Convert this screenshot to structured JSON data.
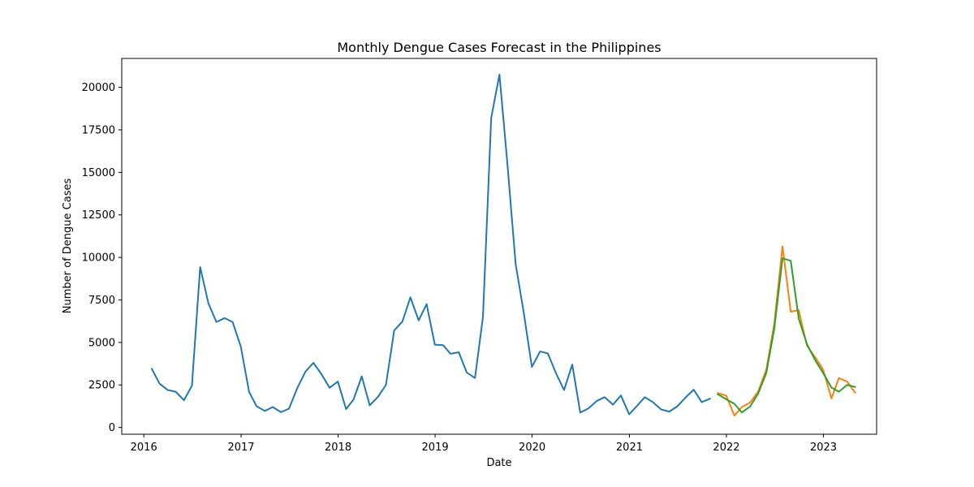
{
  "chart_data": {
    "type": "line",
    "title": "Monthly Dengue Cases Forecast in the Philippines",
    "xlabel": "Date",
    "ylabel": "Number of Dengue Cases",
    "xlim": [
      "2015-10-10",
      "2023-07-20"
    ],
    "ylim": [
      -400,
      21700
    ],
    "x_ticks": [
      "2016-01-01",
      "2017-01-01",
      "2018-01-01",
      "2019-01-01",
      "2020-01-01",
      "2021-01-01",
      "2022-01-01",
      "2023-01-01"
    ],
    "x_tick_labels": [
      "2016",
      "2017",
      "2018",
      "2019",
      "2020",
      "2021",
      "2022",
      "2023"
    ],
    "y_ticks": [
      0,
      2500,
      5000,
      7500,
      10000,
      12500,
      15000,
      17500,
      20000
    ],
    "y_tick_labels": [
      "0",
      "2500",
      "5000",
      "7500",
      "10000",
      "12500",
      "15000",
      "17500",
      "20000"
    ],
    "grid": false,
    "legend": false,
    "series": [
      {
        "color": "#1f77b4",
        "x": [
          "2016-01-31",
          "2016-02-29",
          "2016-03-31",
          "2016-04-30",
          "2016-05-31",
          "2016-06-30",
          "2016-07-31",
          "2016-08-31",
          "2016-09-30",
          "2016-10-31",
          "2016-11-30",
          "2016-12-31",
          "2017-01-31",
          "2017-02-28",
          "2017-03-31",
          "2017-04-30",
          "2017-05-31",
          "2017-06-30",
          "2017-07-31",
          "2017-08-31",
          "2017-09-30",
          "2017-10-31",
          "2017-11-30",
          "2017-12-31",
          "2018-01-31",
          "2018-02-28",
          "2018-03-31",
          "2018-04-30",
          "2018-05-31",
          "2018-06-30",
          "2018-07-31",
          "2018-08-31",
          "2018-09-30",
          "2018-10-31",
          "2018-11-30",
          "2018-12-31",
          "2019-01-31",
          "2019-02-28",
          "2019-03-31",
          "2019-04-30",
          "2019-05-31",
          "2019-06-30",
          "2019-07-31",
          "2019-08-31",
          "2019-09-30",
          "2019-10-31",
          "2019-11-30",
          "2019-12-31",
          "2020-01-31",
          "2020-02-29",
          "2020-03-31",
          "2020-04-30",
          "2020-05-31",
          "2020-06-30",
          "2020-07-31",
          "2020-08-31",
          "2020-09-30",
          "2020-10-31",
          "2020-11-30",
          "2020-12-31",
          "2021-01-31",
          "2021-02-28",
          "2021-03-31",
          "2021-04-30",
          "2021-05-31",
          "2021-06-30",
          "2021-07-31",
          "2021-08-31",
          "2021-09-30",
          "2021-10-31"
        ],
        "y": [
          3450,
          2580,
          2200,
          2100,
          1600,
          2450,
          9430,
          7300,
          6200,
          6430,
          6200,
          4750,
          2100,
          1250,
          970,
          1200,
          900,
          1100,
          2300,
          3280,
          3800,
          3120,
          2330,
          2700,
          1080,
          1640,
          3000,
          1300,
          1800,
          2500,
          5700,
          6230,
          7650,
          6300,
          7250,
          4870,
          4840,
          4330,
          4420,
          3230,
          2910,
          6500,
          18200,
          20750,
          15500,
          9600,
          6800,
          3560,
          4470,
          4350,
          3180,
          2200,
          3700,
          870,
          1120,
          1560,
          1780,
          1340,
          1880,
          770,
          1290,
          1780,
          1480,
          1060,
          930,
          1240,
          1760,
          2220,
          1490,
          1690
        ]
      },
      {
        "color": "#ff7f0e",
        "x": [
          "2021-11-30",
          "2021-12-31",
          "2022-01-31",
          "2022-02-28",
          "2022-03-31",
          "2022-04-30",
          "2022-05-31",
          "2022-06-30",
          "2022-07-31",
          "2022-08-31",
          "2022-09-30",
          "2022-10-31",
          "2022-11-30",
          "2022-12-31",
          "2023-01-31",
          "2023-02-28",
          "2023-03-31",
          "2023-04-30"
        ],
        "y": [
          2020,
          1870,
          700,
          1200,
          1460,
          2100,
          3400,
          6100,
          10650,
          6800,
          6900,
          4800,
          4150,
          3400,
          1700,
          2900,
          2700,
          2050
        ]
      },
      {
        "color": "#2ca02c",
        "x": [
          "2021-11-30",
          "2021-12-31",
          "2022-01-31",
          "2022-02-28",
          "2022-03-31",
          "2022-04-30",
          "2022-05-31",
          "2022-06-30",
          "2022-07-31",
          "2022-08-31",
          "2022-09-30",
          "2022-10-31",
          "2022-11-30",
          "2022-12-31",
          "2023-01-31",
          "2023-02-28",
          "2023-03-31",
          "2023-04-30"
        ],
        "y": [
          1950,
          1660,
          1390,
          880,
          1230,
          1980,
          3200,
          5800,
          9950,
          9800,
          6400,
          4900,
          3980,
          3200,
          2350,
          2100,
          2500,
          2380
        ]
      }
    ]
  }
}
